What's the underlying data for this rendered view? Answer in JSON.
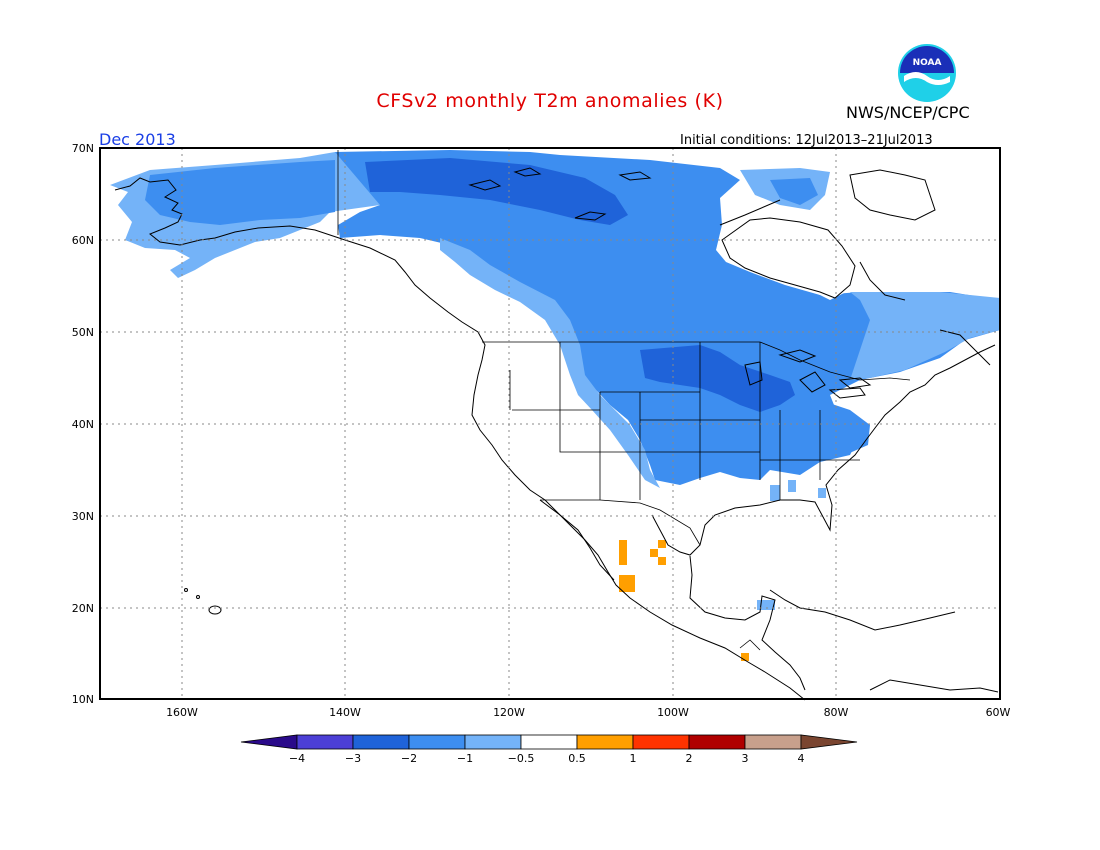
{
  "title": "CFSv2 monthly T2m anomalies (K)",
  "agency": "NWS/NCEP/CPC",
  "logo_text": "NOAA",
  "month": "Dec 2013",
  "initial_conditions": "Initial conditions: 12Jul2013–21Jul2013",
  "lat_labels": [
    "70N",
    "60N",
    "50N",
    "40N",
    "30N",
    "20N",
    "10N"
  ],
  "lon_labels": [
    "160W",
    "140W",
    "120W",
    "100W",
    "80W",
    "60W"
  ],
  "colors": {
    "cold4": "#2a0a8a",
    "cold3": "#4c3fd6",
    "cold2": "#1f63d9",
    "cold1": "#3d8ef0",
    "cold05": "#74b3f8",
    "neutral": "#ffffff",
    "warm05": "#ff9f00",
    "warm1": "#ff3300",
    "warm2": "#b00000",
    "warm3": "#c8a08c",
    "warm4": "#7a4530"
  },
  "legend": {
    "ticks": [
      "−4",
      "−3",
      "−2",
      "−1",
      "−0.5",
      "0.5",
      "1",
      "2",
      "3",
      "4"
    ],
    "bins": [
      "cold4",
      "cold3",
      "cold2",
      "cold1",
      "cold05",
      "neutral",
      "warm05",
      "warm1",
      "warm2",
      "warm3",
      "warm4"
    ]
  }
}
